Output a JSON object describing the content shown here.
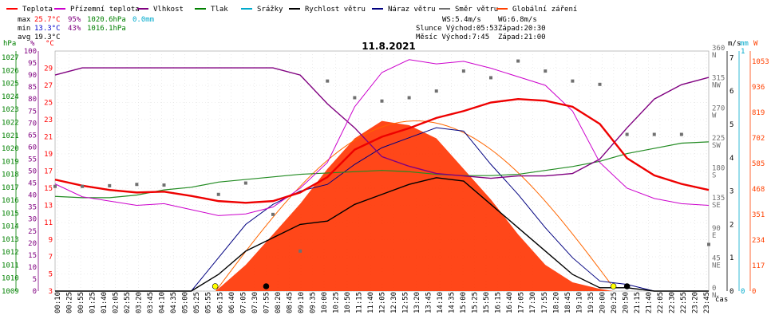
{
  "title": "11.8.2021",
  "legend": [
    {
      "label": "Teplota",
      "color": "#ff0000"
    },
    {
      "label": "Přízemní teplota",
      "color": "#cc00cc"
    },
    {
      "label": "Vlhkost",
      "color": "#800080"
    },
    {
      "label": "Tlak",
      "color": "#008000"
    },
    {
      "label": "Srážky",
      "color": "#00aacc"
    },
    {
      "label": "Rychlost větru",
      "color": "#000000"
    },
    {
      "label": "Náraz větru",
      "color": "#000080"
    },
    {
      "label": "Směr větru",
      "color": "#707070"
    },
    {
      "label": "Globální záření",
      "color": "#ff4000"
    }
  ],
  "stats": {
    "max_label": "max",
    "max_temp": "25.7°C",
    "max_hum": "95%",
    "max_press": "1020.6hPa",
    "rain": "0.0mm",
    "min_label": "min",
    "min_temp": "13.3°C",
    "min_hum": "43%",
    "min_press": "1016.1hPa",
    "avg_label": "avg",
    "avg_temp": "19.3°C"
  },
  "info": {
    "ws": "WS:5.4m/s",
    "wg": "WG:6.8m/s",
    "slunce": "Slunce Východ:05:53",
    "slunce_zapad": "Západ:20:30",
    "mesic": "Měsíc  Východ:7:45",
    "mesic_zapad": "Západ:21:00"
  },
  "axes": {
    "hpa_unit": "hPa",
    "pct_unit": "%",
    "c_unit": "°C",
    "ms_unit": "m/s",
    "mm_unit": "mm",
    "w_unit": "W",
    "hpa_ticks": [
      "1027",
      "1026",
      "1025",
      "1024",
      "1023",
      "1022",
      "1021",
      "1020",
      "1019",
      "1018",
      "1017",
      "1016",
      "1015",
      "1014",
      "1013",
      "1012",
      "1011",
      "1010",
      "1009"
    ],
    "pct_ticks": [
      "100",
      "95",
      "90",
      "85",
      "80",
      "75",
      "70",
      "65",
      "60",
      "55",
      "50",
      "45",
      "40",
      "35",
      "30",
      "25",
      "20",
      "15",
      "10",
      "5",
      "0"
    ],
    "c_ticks": [
      "29",
      "27",
      "25",
      "23",
      "21",
      "19",
      "17",
      "15",
      "13",
      "11",
      "9",
      "7",
      "5",
      "3"
    ],
    "dir_ticks": [
      "360 N",
      "315 NW",
      "270 W",
      "225 SW",
      "180 S",
      "135 SE",
      "90 E",
      "45 NE",
      "0 N"
    ],
    "ms_ticks": [
      "7",
      "6",
      "5",
      "4",
      "3",
      "2",
      "1",
      "0"
    ],
    "mm_ticks": [
      "1",
      "0"
    ],
    "w_ticks": [
      "1053",
      "936",
      "819",
      "702",
      "585",
      "468",
      "351",
      "234",
      "117",
      "0"
    ],
    "time_label": "čas"
  },
  "chart_data": {
    "type": "line",
    "title": "11.8.2021",
    "x_ticks": [
      "00:10",
      "00:25",
      "00:55",
      "01:25",
      "01:40",
      "02:05",
      "02:55",
      "03:20",
      "03:45",
      "04:10",
      "04:35",
      "05:00",
      "05:25",
      "05:55",
      "06:15",
      "06:40",
      "07:05",
      "07:30",
      "07:55",
      "08:20",
      "08:45",
      "09:10",
      "09:35",
      "10:00",
      "10:25",
      "10:50",
      "11:15",
      "11:40",
      "12:05",
      "12:30",
      "12:55",
      "13:20",
      "13:45",
      "14:10",
      "14:35",
      "15:00",
      "15:25",
      "15:50",
      "16:15",
      "16:40",
      "17:05",
      "17:30",
      "17:55",
      "18:20",
      "18:45",
      "19:10",
      "19:35",
      "20:00",
      "20:25",
      "20:50",
      "21:15",
      "21:40",
      "22:05",
      "22:30",
      "22:55",
      "23:20",
      "23:45"
    ],
    "x_hours": [
      0,
      2,
      4,
      6,
      8,
      10,
      12,
      14,
      16,
      18,
      20,
      22,
      24
    ],
    "series": [
      {
        "name": "Teplota",
        "unit": "°C",
        "x": [
          0,
          1,
          2,
          3,
          4,
          5,
          6,
          7,
          8,
          9,
          10,
          11,
          12,
          13,
          14,
          15,
          16,
          17,
          18,
          19,
          20,
          21,
          22,
          23,
          24
        ],
        "y": [
          16.0,
          15.3,
          14.8,
          14.5,
          14.6,
          14.1,
          13.5,
          13.3,
          13.5,
          14.5,
          16.3,
          19.5,
          21.0,
          22.0,
          23.2,
          24.0,
          25.0,
          25.4,
          25.2,
          24.5,
          22.5,
          18.5,
          16.5,
          15.5,
          14.8
        ]
      },
      {
        "name": "Přízemní teplota",
        "unit": "°C",
        "x": [
          0,
          1,
          2,
          3,
          4,
          5,
          6,
          7,
          8,
          9,
          10,
          11,
          12,
          13,
          14,
          15,
          16,
          17,
          18,
          19,
          20,
          21,
          22,
          23,
          24
        ],
        "y": [
          15.5,
          14.0,
          13.5,
          13.0,
          13.2,
          12.5,
          11.8,
          12.0,
          12.8,
          15.0,
          18.0,
          24.5,
          28.5,
          30.0,
          29.5,
          29.8,
          29.0,
          28.0,
          27.0,
          24.0,
          18.0,
          15.0,
          13.8,
          13.2,
          13.0
        ]
      },
      {
        "name": "Vlhkost",
        "unit": "%",
        "x": [
          0,
          1,
          2,
          3,
          4,
          5,
          6,
          7,
          8,
          9,
          10,
          11,
          12,
          13,
          14,
          15,
          16,
          17,
          18,
          19,
          20,
          21,
          22,
          23,
          24
        ],
        "y": [
          90,
          93,
          93,
          93,
          93,
          93,
          93,
          93,
          93,
          90,
          78,
          68,
          56,
          52,
          49,
          48,
          47,
          48,
          48,
          49,
          55,
          68,
          80,
          86,
          89
        ]
      },
      {
        "name": "Tlak",
        "unit": "hPa",
        "x": [
          0,
          1,
          2,
          3,
          4,
          5,
          6,
          7,
          8,
          9,
          10,
          11,
          12,
          13,
          14,
          15,
          16,
          17,
          18,
          19,
          20,
          21,
          22,
          23,
          24
        ],
        "y": [
          1016.3,
          1016.2,
          1016.2,
          1016.4,
          1016.8,
          1017.0,
          1017.4,
          1017.6,
          1017.8,
          1018.0,
          1018.1,
          1018.2,
          1018.3,
          1018.2,
          1018.0,
          1017.9,
          1017.9,
          1018.0,
          1018.3,
          1018.6,
          1019.0,
          1019.6,
          1020.0,
          1020.4,
          1020.5
        ]
      },
      {
        "name": "Rychlost větru",
        "unit": "m/s",
        "x": [
          0,
          5,
          6,
          7,
          8,
          9,
          10,
          11,
          12,
          13,
          14,
          15,
          16,
          17,
          18,
          19,
          20,
          21,
          22,
          23,
          24
        ],
        "y": [
          0,
          0,
          0.5,
          1.2,
          1.6,
          2.0,
          2.1,
          2.6,
          2.9,
          3.2,
          3.4,
          3.3,
          2.6,
          1.9,
          1.2,
          0.5,
          0.1,
          0.1,
          0,
          0,
          0
        ]
      },
      {
        "name": "Náraz větru",
        "unit": "m/s",
        "x": [
          0,
          5,
          6,
          7,
          8,
          9,
          10,
          11,
          12,
          13,
          14,
          15,
          16,
          17,
          18,
          19,
          20,
          21,
          22,
          23,
          24
        ],
        "y": [
          0,
          0,
          1.0,
          2.0,
          2.6,
          3.0,
          3.2,
          3.8,
          4.3,
          4.6,
          4.9,
          4.8,
          3.8,
          2.9,
          1.9,
          1.0,
          0.3,
          0.2,
          0,
          0,
          0
        ]
      },
      {
        "name": "Globální záření",
        "unit": "W",
        "x": [
          5.9,
          7,
          8,
          9,
          10,
          11,
          12,
          13,
          14,
          15,
          16,
          17,
          18,
          19,
          20,
          20.5
        ],
        "y": [
          0,
          120,
          260,
          400,
          560,
          700,
          780,
          760,
          700,
          560,
          420,
          260,
          120,
          40,
          10,
          0
        ]
      }
    ],
    "wind_direction": {
      "unit": "°",
      "x": [
        0,
        1,
        2,
        3,
        4,
        6,
        7,
        8,
        9,
        10,
        11,
        12,
        13,
        14,
        15,
        16,
        17,
        18,
        19,
        20,
        21,
        22,
        23,
        24
      ],
      "y": [
        157,
        157,
        158,
        160,
        159,
        145,
        162,
        115,
        60,
        315,
        290,
        285,
        290,
        300,
        330,
        320,
        345,
        330,
        315,
        310,
        235,
        235,
        235,
        70
      ]
    },
    "ylim_temp": [
      3,
      31
    ],
    "ylim_hum": [
      0,
      100
    ],
    "ylim_press": [
      1009,
      1027.5
    ],
    "ylim_wind": [
      0,
      7.2
    ],
    "ylim_rad": [
      0,
      1100
    ],
    "ylim_dir": [
      0,
      360
    ]
  }
}
